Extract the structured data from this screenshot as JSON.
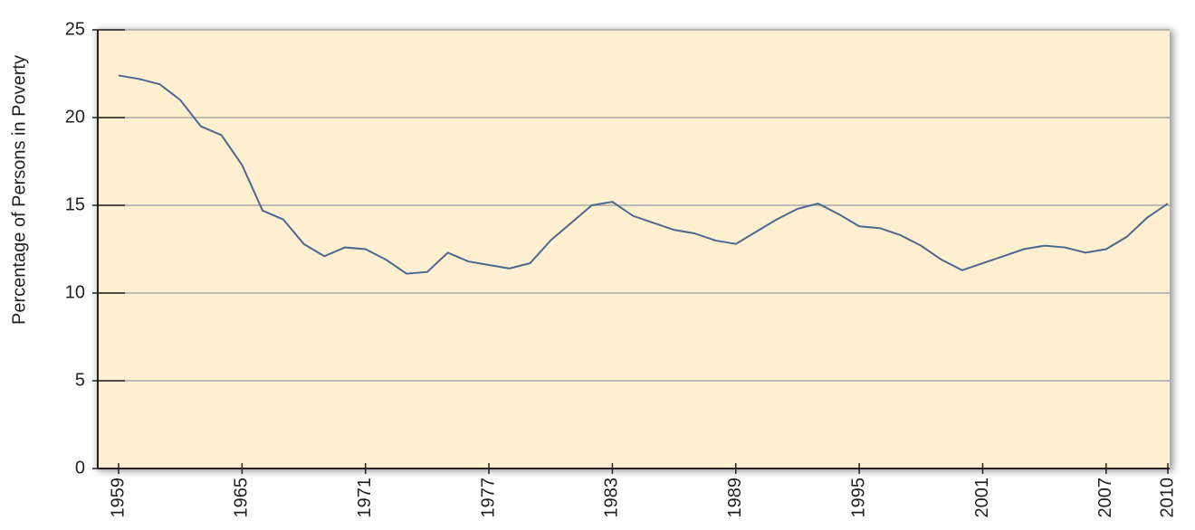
{
  "chart_data": {
    "type": "line",
    "y_label": "Percentage of Persons in Poverty",
    "x": [
      1959,
      1960,
      1961,
      1962,
      1963,
      1964,
      1965,
      1966,
      1967,
      1968,
      1969,
      1970,
      1971,
      1972,
      1973,
      1974,
      1975,
      1976,
      1977,
      1978,
      1979,
      1980,
      1981,
      1982,
      1983,
      1984,
      1985,
      1986,
      1987,
      1988,
      1989,
      1990,
      1991,
      1992,
      1993,
      1994,
      1995,
      1996,
      1997,
      1998,
      1999,
      2000,
      2001,
      2002,
      2003,
      2004,
      2005,
      2006,
      2007,
      2008,
      2009,
      2010
    ],
    "values": [
      22.4,
      22.2,
      21.9,
      21.0,
      19.5,
      19.0,
      17.3,
      14.7,
      14.2,
      12.8,
      12.1,
      12.6,
      12.5,
      11.9,
      11.1,
      11.2,
      12.3,
      11.8,
      11.6,
      11.4,
      11.7,
      13.0,
      14.0,
      15.0,
      15.2,
      14.4,
      14.0,
      13.6,
      13.4,
      13.0,
      12.8,
      13.5,
      14.2,
      14.8,
      15.1,
      14.5,
      13.8,
      13.7,
      13.3,
      12.7,
      11.9,
      11.3,
      11.7,
      12.1,
      12.5,
      12.7,
      12.6,
      12.3,
      12.5,
      13.2,
      14.3,
      15.1
    ],
    "color": "#4a6890",
    "xlim": [
      1959,
      2010
    ],
    "xticks": [
      1959,
      1965,
      1971,
      1977,
      1983,
      1989,
      1995,
      2001,
      2007,
      2010
    ],
    "ylim": [
      0,
      25
    ],
    "yticks": [
      0,
      5,
      10,
      15,
      20,
      25
    ],
    "grid": true,
    "background": "#fdefcf"
  }
}
